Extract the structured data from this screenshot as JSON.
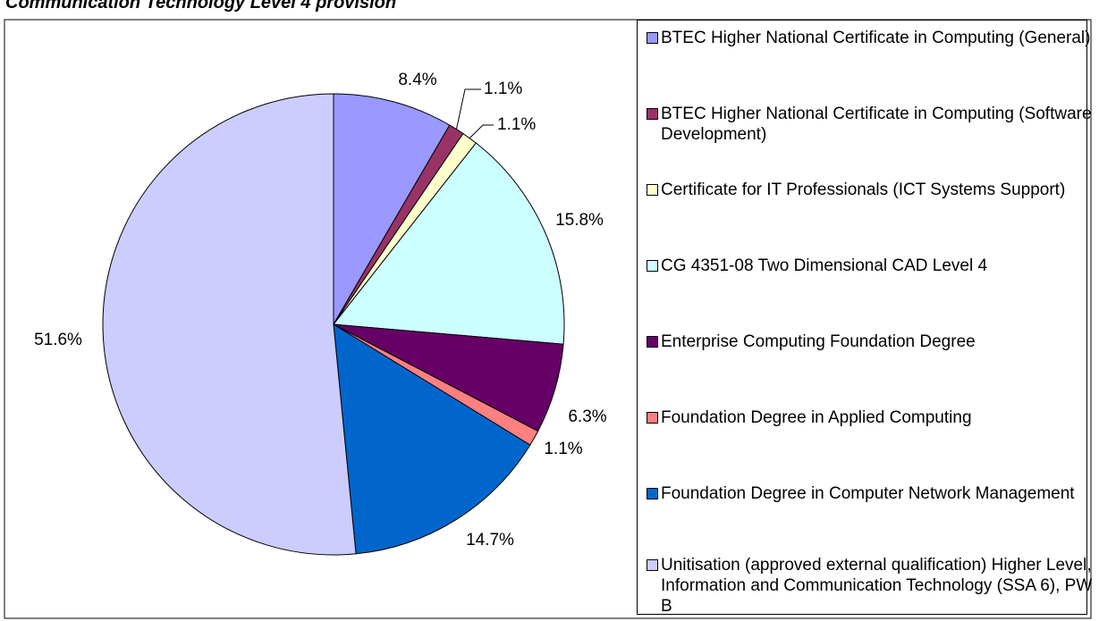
{
  "chart_data": {
    "type": "pie",
    "title": "Communication Technology Level 4 provision",
    "categories": [
      "BTEC Higher National Certificate in Computing (General)",
      "BTEC Higher National Certificate in Computing (Software Development)",
      "Certificate for IT Professionals (ICT Systems Support)",
      "CG 4351-08 Two Dimensional CAD Level 4",
      "Enterprise Computing Foundation Degree",
      "Foundation Degree in Applied Computing",
      "Foundation Degree in Computer Network Management",
      "Unitisation (approved external qualification) Higher Level, Information and Communication Technology (SSA 6), PW B"
    ],
    "values": [
      8.4,
      1.1,
      1.1,
      15.8,
      6.3,
      1.1,
      14.7,
      51.6
    ],
    "value_labels": [
      "8.4%",
      "1.1%",
      "1.1%",
      "15.8%",
      "6.3%",
      "1.1%",
      "14.7%",
      "51.6%"
    ],
    "colors": [
      "#9999ff",
      "#993366",
      "#ffffcc",
      "#ccffff",
      "#660066",
      "#ff8080",
      "#0066cc",
      "#ccccff"
    ],
    "legend": "right"
  }
}
